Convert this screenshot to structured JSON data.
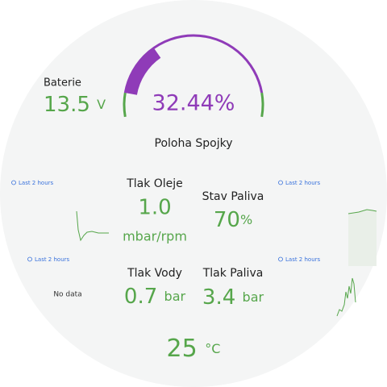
{
  "battery": {
    "label": "Baterie",
    "value": "13.5",
    "unit": "V"
  },
  "gauge": {
    "value": "32.44%",
    "label": "Poloha Spojky"
  },
  "oil_pressure": {
    "label": "Tlak Oleje",
    "value": "1.0",
    "unit": "mbar/rpm"
  },
  "fuel_level": {
    "label": "Stav Paliva",
    "value": "70",
    "unit": "%"
  },
  "water_pressure": {
    "label": "Tlak Vody",
    "value": "0.7",
    "unit": "bar"
  },
  "fuel_pressure": {
    "label": "Tlak Paliva",
    "value": "3.4",
    "unit": "bar"
  },
  "temperature": {
    "value": "25",
    "unit": "°C"
  },
  "sparklines": {
    "time_ranges": [
      "Last 2 hours",
      "Last 2 hours",
      "Last 2 hours",
      "Last 2 hours"
    ],
    "no_data": "No data"
  }
}
